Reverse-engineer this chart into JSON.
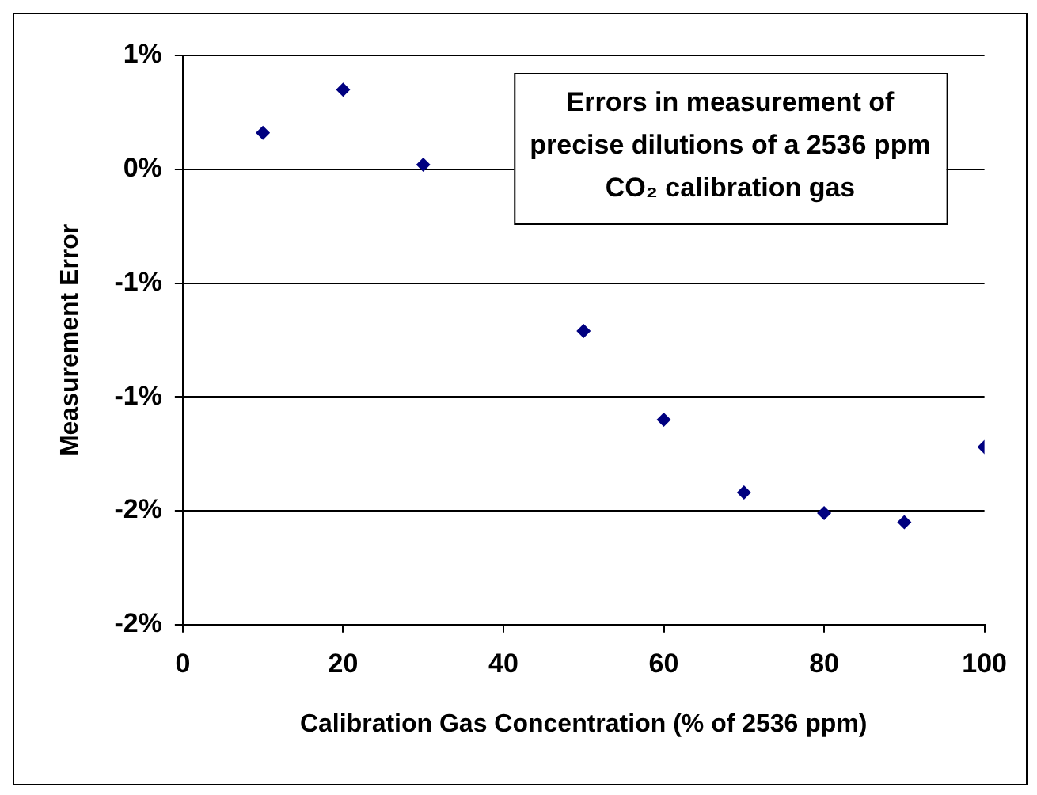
{
  "chart_data": {
    "type": "scatter",
    "xlabel": "Calibration Gas Concentration (% of 2536 ppm)",
    "ylabel": "Measurement Error",
    "annotations": [
      "Errors in measurement of\nprecise dilutions of a 2536 ppm\nCO₂ calibration gas"
    ],
    "x": [
      10,
      20,
      30,
      50,
      60,
      70,
      80,
      90,
      100
    ],
    "series": [
      {
        "color": "#000080",
        "values": [
          0.16,
          0.35,
          0.02,
          -0.71,
          -1.1,
          -1.42,
          -1.51,
          -1.55,
          -1.22
        ]
      }
    ],
    "xlim": [
      0,
      100
    ],
    "xticks": [
      0,
      20,
      40,
      60,
      80,
      100
    ],
    "ylim": [
      -2,
      0.5
    ],
    "yticks": [
      {
        "value": 0.5,
        "label": "1%"
      },
      {
        "value": 0,
        "label": "0%"
      },
      {
        "value": -0.5,
        "label": "-1%"
      },
      {
        "value": -1,
        "label": "-1%"
      },
      {
        "value": -1.5,
        "label": "-2%"
      },
      {
        "value": -2,
        "label": "-2%"
      }
    ],
    "grid": "y",
    "legend": false,
    "marker": "diamond"
  }
}
